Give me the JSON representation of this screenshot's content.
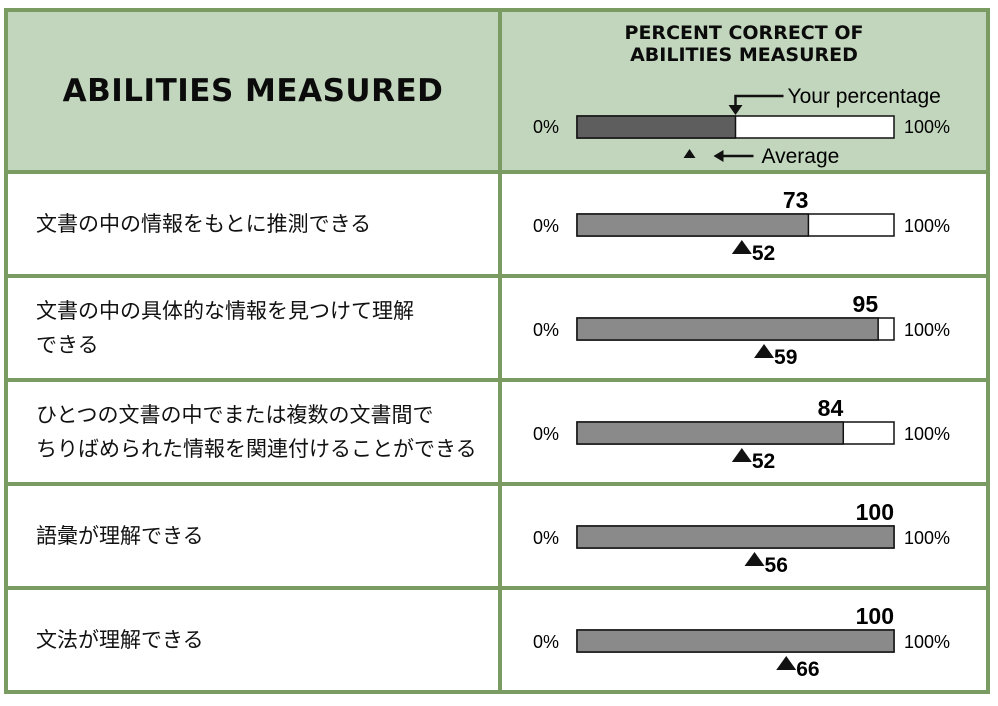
{
  "header": {
    "abilities_title": "ABILITIES MEASURED",
    "percent_title_line1": "PERCENT CORRECT OF",
    "percent_title_line2": "ABILITIES MEASURED",
    "legend": {
      "your_percentage_label": "Your percentage",
      "average_label": "Average",
      "example_fill": 50,
      "min_label": "0%",
      "max_label": "100%"
    }
  },
  "colors": {
    "border": "#7a9b62",
    "header_bg": "#c2d6bd",
    "bar_fill": "#8a8a8a",
    "legend_fill": "#5e5e5e",
    "bar_bg": "#ffffff"
  },
  "chart_data": {
    "type": "bar",
    "categories": [
      "文書の中の情報をもとに推測できる",
      "文書の中の具体的な情報を見つけて理解できる",
      "ひとつの文書の中でまたは複数の文書間でちりばめられた情報を関連付けることができる",
      "語彙が理解できる",
      "文法が理解できる"
    ],
    "series": [
      {
        "name": "Your percentage",
        "values": [
          73,
          95,
          84,
          100,
          100
        ]
      },
      {
        "name": "Average",
        "values": [
          52,
          59,
          52,
          56,
          66
        ]
      }
    ],
    "xlim": [
      0,
      100
    ],
    "min_label": "0%",
    "max_label": "100%"
  },
  "rows": [
    {
      "label_lines": [
        "文書の中の情報をもとに推測できる"
      ]
    },
    {
      "label_lines": [
        "文書の中の具体的な情報を見つけて理解",
        "できる"
      ]
    },
    {
      "label_lines": [
        "ひとつの文書の中でまたは複数の文書間で",
        "ちりばめられた情報を関連付けることができる"
      ]
    },
    {
      "label_lines": [
        "語彙が理解できる"
      ]
    },
    {
      "label_lines": [
        "文法が理解できる"
      ]
    }
  ]
}
